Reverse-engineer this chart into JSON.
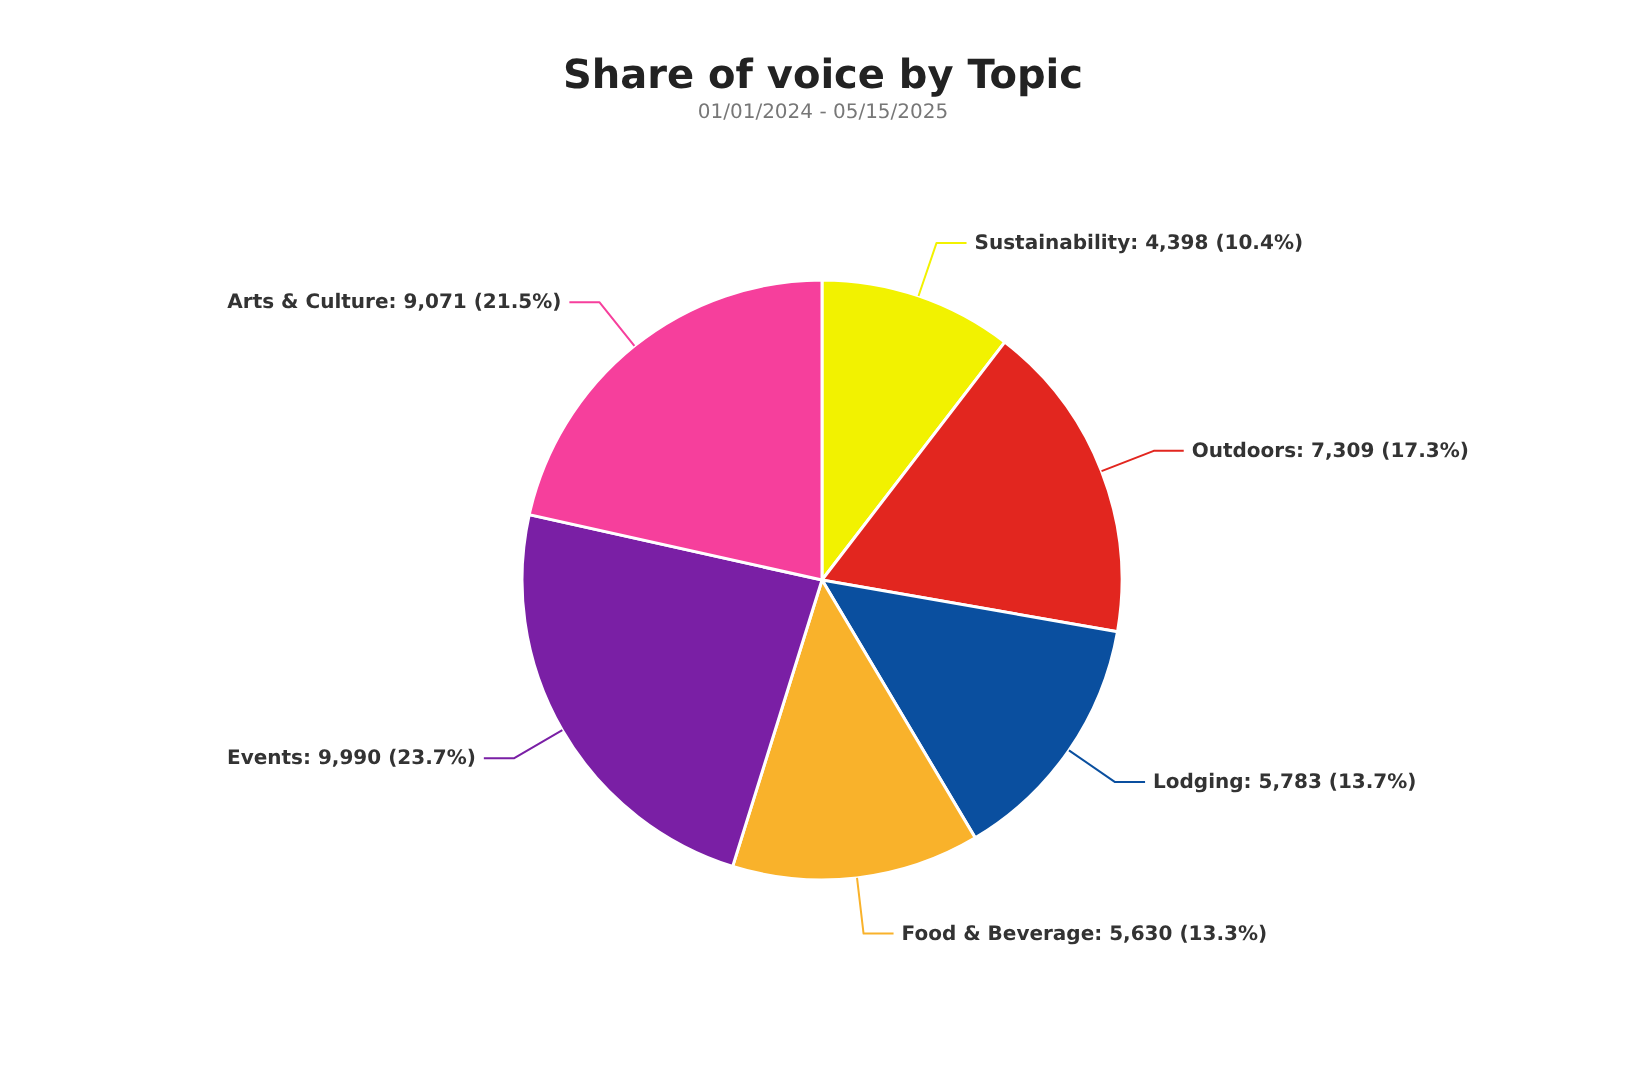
{
  "chart_data": {
    "type": "pie",
    "title": "Share of voice by Topic",
    "subtitle": "01/01/2024 - 05/15/2025",
    "categories": [
      "Sustainability",
      "Outdoors",
      "Lodging",
      "Food & Beverage",
      "Events",
      "Arts & Culture"
    ],
    "values": [
      4398,
      7309,
      5783,
      5630,
      9990,
      9071
    ],
    "colors": [
      "#f2f200",
      "#e2261f",
      "#0a4f9f",
      "#f9b22b",
      "#7a1fa5",
      "#f63f9c"
    ],
    "value_labels": [
      "4,398 (10.4%)",
      "7,309 (17.3%)",
      "5,783 (13.7%)",
      "5,630 (13.3%)",
      "9,990 (23.7%)",
      "9,071 (21.5%)"
    ],
    "legend": false
  }
}
